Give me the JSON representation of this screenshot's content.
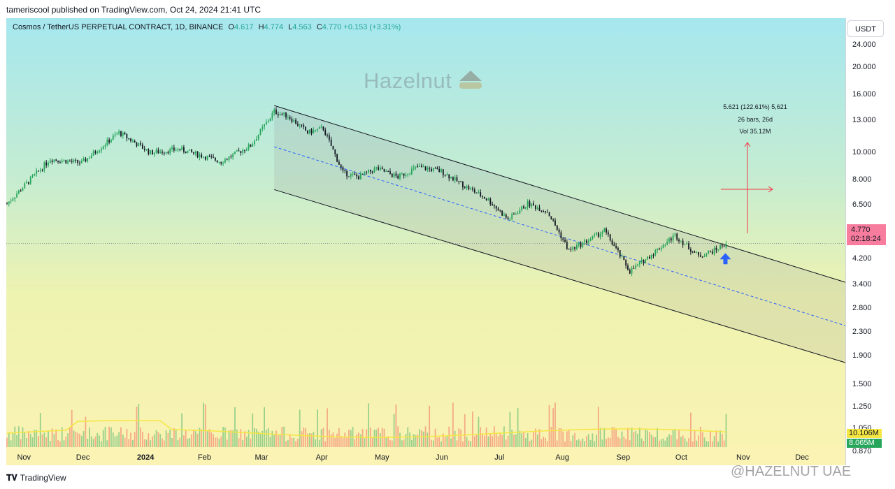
{
  "header": {
    "publisher": "tameriscool published on TradingView.com, Oct 24, 2024 21:41 UTC"
  },
  "legend": {
    "title": "Cosmos / TetherUS PERPETUAL CONTRACT, 1D, BINANCE",
    "o_label": "O",
    "o": "4.617",
    "h_label": "H",
    "h": "4.774",
    "l_label": "L",
    "l": "4.563",
    "c_label": "C",
    "c": "4.770",
    "change": "+0.153 (+3.31%)"
  },
  "watermark": "Hazelnut",
  "measure": {
    "line1": "5.621 (122.61%) 5,621",
    "line2": "26 bars, 26d",
    "line3": "Vol 35.12M"
  },
  "price_scale": {
    "currency": "USDT",
    "ticks": [
      "24.000",
      "20.000",
      "16.000",
      "13.000",
      "10.000",
      "8.000",
      "6.500",
      "5.000",
      "4.200",
      "3.400",
      "2.800",
      "2.300",
      "1.900",
      "1.500",
      "1.250",
      "1.050",
      "0.870"
    ],
    "last_price": "4.770",
    "countdown": "02:18:24",
    "vol_ma": "10.106M",
    "vol": "8.065M"
  },
  "time_axis": [
    "Nov",
    "Dec",
    "2024",
    "Feb",
    "Mar",
    "Apr",
    "May",
    "Jun",
    "Jul",
    "Aug",
    "Sep",
    "Oct",
    "Nov",
    "Dec"
  ],
  "footer": {
    "logo": "TradingView",
    "watermark": "@HAZELNUT UAE"
  },
  "colors": {
    "up": "#26a65b",
    "down": "#131722",
    "channel": "#131722",
    "midline": "#2962ff",
    "vol_ma": "#f5e642",
    "arrow": "#2962ff",
    "measure": "#f23645"
  },
  "chart_data": {
    "type": "candlestick",
    "symbol": "Cosmos / TetherUS PERPETUAL CONTRACT",
    "interval": "1D",
    "exchange": "BINANCE",
    "y_scale": "log",
    "ylim": [
      0.78,
      30
    ],
    "anchors": [
      [
        "2023-10-24",
        6.6
      ],
      [
        "2023-11-15",
        9.5
      ],
      [
        "2023-12-01",
        9.2
      ],
      [
        "2023-12-20",
        11.8
      ],
      [
        "2024-01-05",
        10.0
      ],
      [
        "2024-01-20",
        10.3
      ],
      [
        "2024-02-10",
        9.3
      ],
      [
        "2024-02-25",
        10.6
      ],
      [
        "2024-03-08",
        14.0
      ],
      [
        "2024-03-15",
        13.5
      ],
      [
        "2024-03-25",
        11.8
      ],
      [
        "2024-04-02",
        12.2
      ],
      [
        "2024-04-12",
        8.5
      ],
      [
        "2024-04-20",
        8.2
      ],
      [
        "2024-04-29",
        8.8
      ],
      [
        "2024-05-10",
        8.2
      ],
      [
        "2024-05-20",
        8.9
      ],
      [
        "2024-06-01",
        8.6
      ],
      [
        "2024-06-12",
        7.7
      ],
      [
        "2024-06-25",
        6.8
      ],
      [
        "2024-07-05",
        5.8
      ],
      [
        "2024-07-15",
        6.6
      ],
      [
        "2024-07-25",
        6.2
      ],
      [
        "2024-08-05",
        4.5
      ],
      [
        "2024-08-15",
        4.9
      ],
      [
        "2024-08-23",
        5.3
      ],
      [
        "2024-09-05",
        3.8
      ],
      [
        "2024-09-15",
        4.3
      ],
      [
        "2024-09-28",
        5.1
      ],
      [
        "2024-10-10",
        4.3
      ],
      [
        "2024-10-18",
        4.5
      ],
      [
        "2024-10-24",
        4.77
      ]
    ],
    "last": {
      "open": 4.617,
      "high": 4.774,
      "low": 4.563,
      "close": 4.77,
      "change": 0.153,
      "change_pct": 3.31
    },
    "volume": {
      "ma": "10.106M",
      "last": "8.065M"
    },
    "channel": {
      "upper": [
        [
          "2024-03-08",
          14.7
        ],
        [
          "2024-12-31",
          3.35
        ]
      ],
      "middle": [
        [
          "2024-03-08",
          10.5
        ],
        [
          "2024-12-31",
          2.35
        ]
      ],
      "lower": [
        [
          "2024-03-08",
          7.4
        ],
        [
          "2024-12-31",
          1.74
        ]
      ]
    },
    "measure": {
      "price_change": 5.621,
      "percent": 122.61,
      "bars": 26,
      "days": 26,
      "volume": "35.12M"
    }
  }
}
